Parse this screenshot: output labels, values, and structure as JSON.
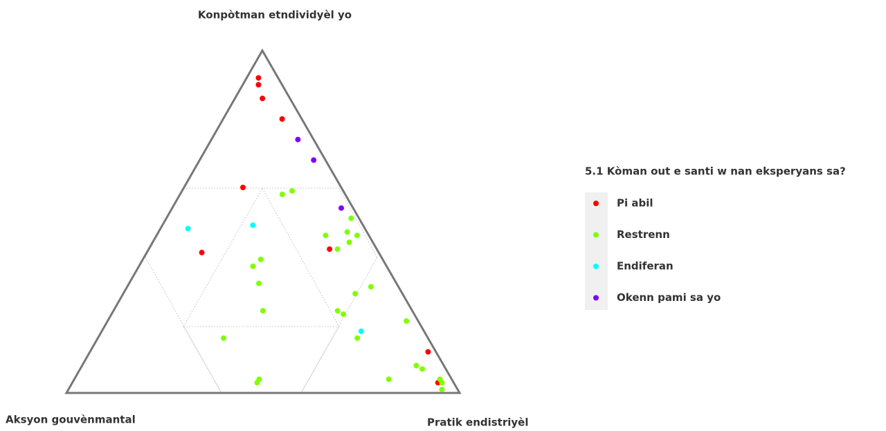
{
  "chart_data": {
    "type": "ternary",
    "axes": [
      "Aksyon gouvènmantal",
      "Pratik endistriyèl",
      "Konpòtman etndividyèl yo"
    ],
    "legend_title": "5.1 Kòman out e santi w nan eksperyans sa?",
    "legend": "right",
    "series": [
      {
        "name": "Pi abil",
        "color": "#ff0000",
        "values": [
          [
            0.05,
            0.03,
            0.92
          ],
          [
            0.06,
            0.04,
            0.9
          ],
          [
            0.07,
            0.07,
            0.86
          ],
          [
            0.05,
            0.15,
            0.8
          ],
          [
            0.25,
            0.15,
            0.6
          ],
          [
            0.45,
            0.14,
            0.41
          ],
          [
            0.12,
            0.46,
            0.42
          ],
          [
            0.02,
            0.86,
            0.12
          ],
          [
            0.04,
            0.93,
            0.03
          ],
          [
            0.03,
            0.94,
            0.03
          ]
        ]
      },
      {
        "name": "Restrenn",
        "color": "#80ff00",
        "values": [
          [
            0.16,
            0.26,
            0.58
          ],
          [
            0.13,
            0.28,
            0.59
          ],
          [
            0.02,
            0.47,
            0.51
          ],
          [
            0.05,
            0.48,
            0.47
          ],
          [
            0.11,
            0.43,
            0.46
          ],
          [
            0.03,
            0.51,
            0.46
          ],
          [
            0.06,
            0.5,
            0.44
          ],
          [
            0.1,
            0.48,
            0.42
          ],
          [
            0.31,
            0.3,
            0.39
          ],
          [
            0.34,
            0.29,
            0.37
          ],
          [
            0.35,
            0.33,
            0.32
          ],
          [
            0.38,
            0.38,
            0.24
          ],
          [
            0.07,
            0.62,
            0.31
          ],
          [
            0.12,
            0.59,
            0.29
          ],
          [
            0.19,
            0.57,
            0.24
          ],
          [
            0.18,
            0.59,
            0.23
          ],
          [
            0.03,
            0.76,
            0.21
          ],
          [
            0.18,
            0.66,
            0.16
          ],
          [
            0.52,
            0.32,
            0.16
          ],
          [
            0.07,
            0.85,
            0.08
          ],
          [
            0.06,
            0.87,
            0.07
          ],
          [
            0.16,
            0.8,
            0.04
          ],
          [
            0.49,
            0.47,
            0.04
          ],
          [
            0.5,
            0.47,
            0.03
          ],
          [
            0.03,
            0.93,
            0.04
          ],
          [
            0.03,
            0.94,
            0.03
          ],
          [
            0.04,
            0.95,
            0.01
          ]
        ]
      },
      {
        "name": "Endiferan",
        "color": "#00ffff",
        "values": [
          [
            0.45,
            0.07,
            0.48
          ],
          [
            0.28,
            0.23,
            0.49
          ],
          [
            0.16,
            0.66,
            0.18
          ]
        ]
      },
      {
        "name": "Okenn pami sa yo",
        "color": "#8000ff",
        "values": [
          [
            0.04,
            0.22,
            0.74
          ],
          [
            0.03,
            0.29,
            0.68
          ],
          [
            0.03,
            0.43,
            0.54
          ]
        ]
      }
    ]
  }
}
